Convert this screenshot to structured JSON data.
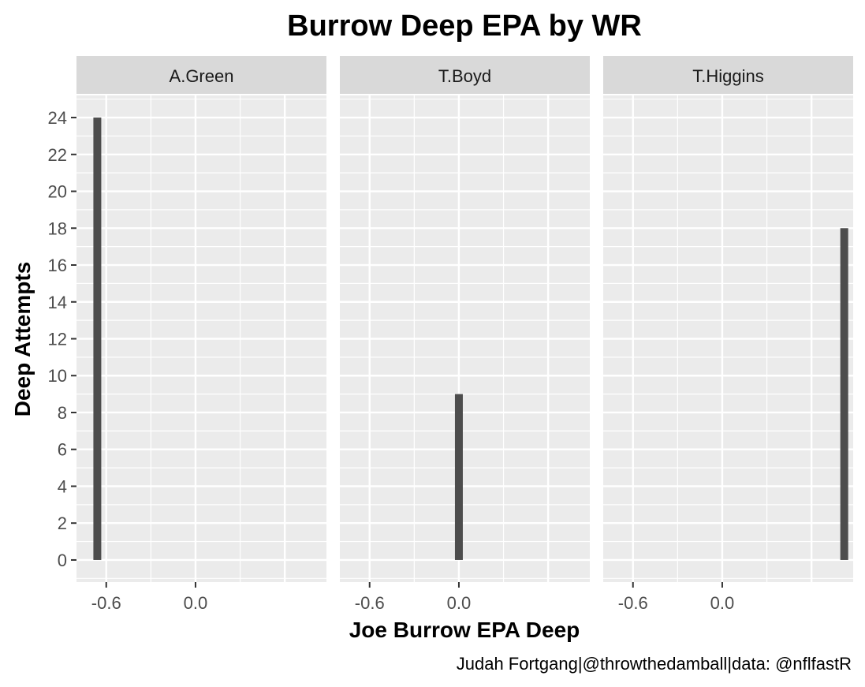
{
  "chart_data": {
    "type": "bar",
    "title": "Burrow Deep EPA by WR",
    "xlabel": "Joe Burrow EPA Deep",
    "ylabel": "Deep Attempts",
    "caption": "Judah Fortgang|@throwthedamball|data: @nflfastR",
    "xlim": [
      -0.8,
      0.88
    ],
    "ylim": [
      -1.2,
      25.2
    ],
    "x_ticks": [
      -0.6,
      0.0
    ],
    "x_tick_labels": [
      "-0.6",
      "0.0"
    ],
    "y_ticks": [
      0,
      2,
      4,
      6,
      8,
      10,
      12,
      14,
      16,
      18,
      20,
      22,
      24
    ],
    "y_tick_labels": [
      "0",
      "2",
      "4",
      "6",
      "8",
      "10",
      "12",
      "14",
      "16",
      "18",
      "20",
      "22",
      "24"
    ],
    "grid": true,
    "bar_color": "#4d4d4d",
    "panel_color": "#ebebeb",
    "strip_color": "#d9d9d9",
    "facets": [
      {
        "label": "A.Green",
        "x": -0.66,
        "value": 24
      },
      {
        "label": "T.Boyd",
        "x": 0.0,
        "value": 9
      },
      {
        "label": "T.Higgins",
        "x": 0.82,
        "value": 18
      }
    ]
  }
}
